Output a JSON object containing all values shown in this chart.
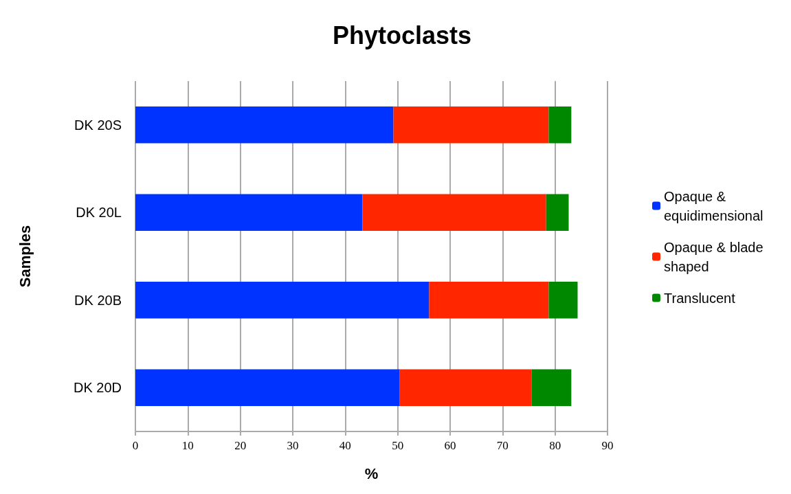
{
  "chart_data": {
    "type": "bar",
    "orientation": "horizontal",
    "stacked": true,
    "title": "Phytoclasts",
    "xlabel": "%",
    "ylabel": "Samples",
    "categories": [
      "DK 20S",
      "DK 20L",
      "DK 20B",
      "DK 20D"
    ],
    "series": [
      {
        "name": "Opaque & equidimensional",
        "color": "#0033ff",
        "values": [
          49.2,
          43.3,
          56.0,
          50.4
        ]
      },
      {
        "name": "Opaque & blade shaped",
        "color": "#ff2600",
        "values": [
          29.6,
          35.0,
          22.8,
          25.1
        ]
      },
      {
        "name": "Translucent",
        "color": "#008800",
        "values": [
          4.3,
          4.3,
          5.5,
          7.6
        ]
      }
    ],
    "xlim": [
      0,
      90
    ],
    "xticks": [
      0,
      10,
      20,
      30,
      40,
      50,
      60,
      70,
      80,
      90
    ],
    "grid": "x",
    "legend": "right"
  }
}
